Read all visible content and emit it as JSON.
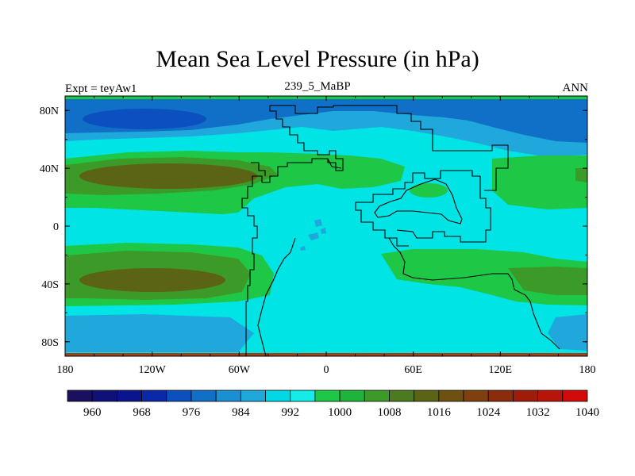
{
  "title": "Mean Sea Level Pressure (in hPa)",
  "left_label": "Expt = teyAw1",
  "center_label": "239_5_MaBP",
  "right_label": "ANN",
  "axes": {
    "x_ticks": [
      "180",
      "120W",
      "60W",
      "0",
      "60E",
      "120E",
      "180"
    ],
    "y_ticks": [
      "80N",
      "40N",
      "0",
      "40S",
      "80S"
    ]
  },
  "colorbar": {
    "labels": [
      "960",
      "968",
      "976",
      "984",
      "992",
      "1000",
      "1008",
      "1016",
      "1024",
      "1032",
      "1040"
    ],
    "colors": [
      "#1a1060",
      "#10107a",
      "#0a148c",
      "#0a28a8",
      "#0c50c0",
      "#1070c8",
      "#1890d2",
      "#20a8dc",
      "#00d8e6",
      "#14ece8",
      "#1ec846",
      "#1eb43c",
      "#3c9a28",
      "#4c7a1e",
      "#5a6414",
      "#6e5010",
      "#80400e",
      "#8c2c0c",
      "#a01c0a",
      "#b8140a",
      "#d20a0a"
    ]
  },
  "colors": {
    "background": "#00e4e6",
    "coast": "#000000"
  }
}
